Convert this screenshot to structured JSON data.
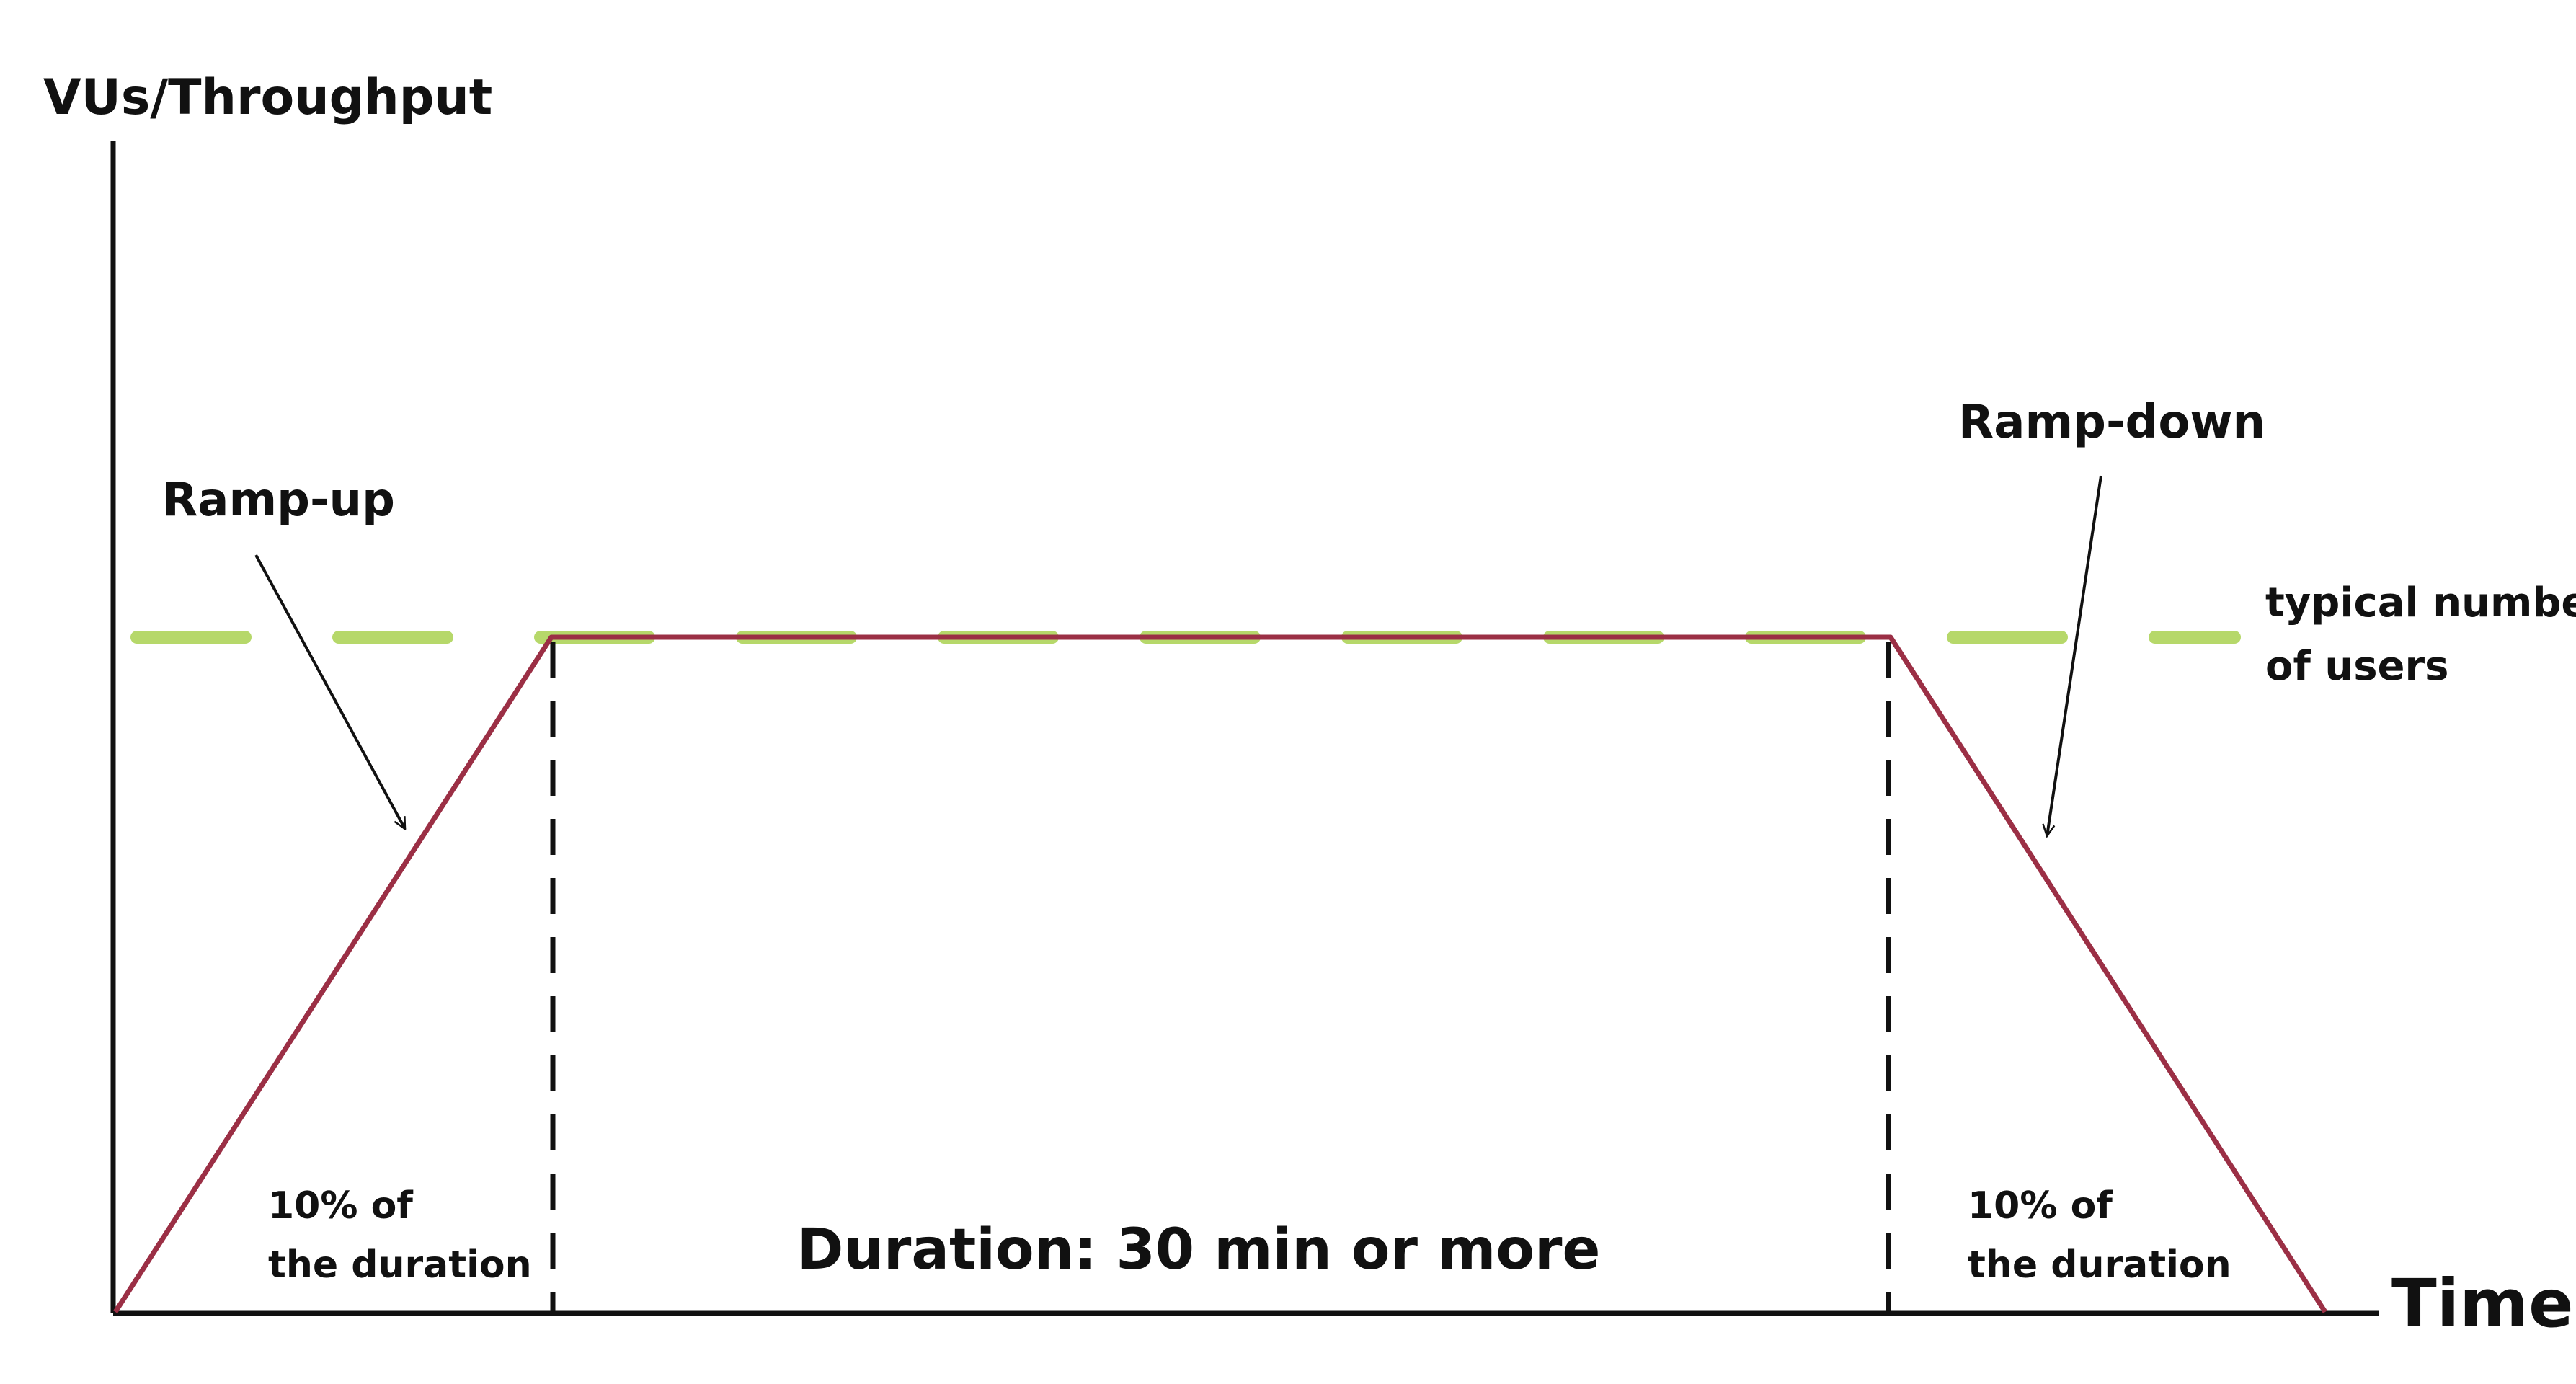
{
  "axes": {
    "y_label": "VUs/Throughput",
    "x_label": "Time"
  },
  "annotations": {
    "ramp_up": "Ramp-up",
    "ramp_down": "Ramp-down",
    "typical_users_line1": "typical number",
    "typical_users_line2": "of users",
    "ramp_up_duration_line1": "10% of",
    "ramp_up_duration_line2": "the duration",
    "ramp_down_duration_line1": "10% of",
    "ramp_down_duration_line2": "the duration",
    "steady_duration": "Duration: 30 min or more"
  },
  "colors": {
    "profile_line": "#9b2f45",
    "typical_line": "#b6d86a",
    "axis": "#111111"
  }
}
